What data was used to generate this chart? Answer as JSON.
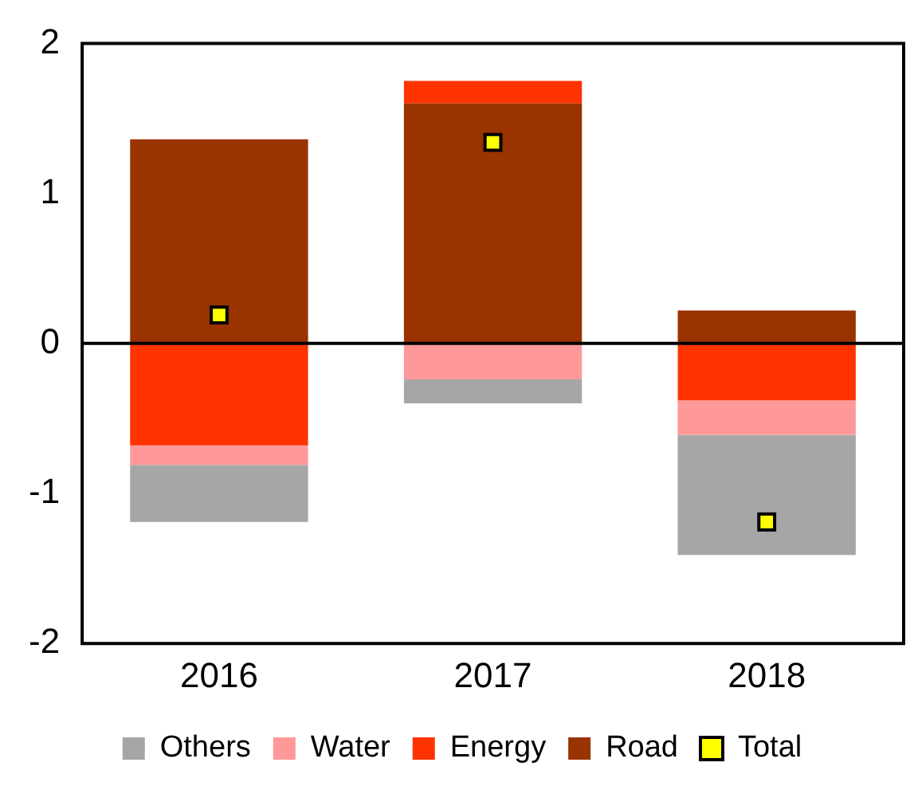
{
  "chart_data": {
    "type": "bar",
    "stacked": true,
    "categories": [
      "2016",
      "2017",
      "2018"
    ],
    "series": [
      {
        "name": "Road",
        "color": "#993300",
        "values": [
          1.36,
          1.6,
          0.22
        ]
      },
      {
        "name": "Energy",
        "color": "#ff3300",
        "values": [
          -0.68,
          0.15,
          -0.38
        ]
      },
      {
        "name": "Water",
        "color": "#ff9999",
        "values": [
          -0.13,
          -0.24,
          -0.23
        ]
      },
      {
        "name": "Others",
        "color": "#a6a6a6",
        "values": [
          -0.38,
          -0.16,
          -0.8
        ]
      },
      {
        "name": "Total",
        "type": "scatter",
        "color": "#ffff00",
        "values": [
          0.19,
          1.34,
          -1.19
        ]
      }
    ],
    "ylim": [
      -2,
      2
    ],
    "yticks": [
      -2,
      -1,
      0,
      1,
      2
    ],
    "grid": false,
    "legend": "bottom",
    "marker": "square",
    "ref_lines": [
      {
        "axis": "y",
        "value": 0,
        "color": "#000000"
      }
    ]
  }
}
